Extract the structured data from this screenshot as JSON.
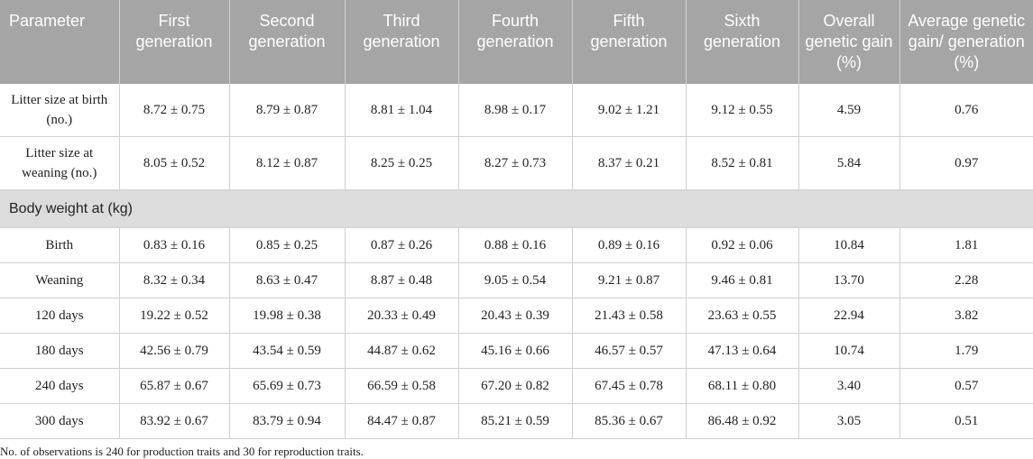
{
  "table": {
    "header": [
      "Parameter",
      "First generation",
      "Second generation",
      "Third generation",
      "Fourth generation",
      "Fifth generation",
      "Sixth generation",
      "Overall genetic gain (%)",
      "Average genetic gain/ generation (%)"
    ],
    "groups": [
      {
        "rows": [
          [
            "Litter size at birth (no.)",
            "8.72 ± 0.75",
            "8.79 ± 0.87",
            "8.81 ± 1.04",
            "8.98 ± 0.17",
            "9.02 ± 1.21",
            "9.12 ± 0.55",
            "4.59",
            "0.76"
          ],
          [
            "Litter size at weaning (no.)",
            "8.05 ± 0.52",
            "8.12 ± 0.87",
            "8.25 ± 0.25",
            "8.27 ± 0.73",
            "8.37 ± 0.21",
            "8.52 ± 0.81",
            "5.84",
            "0.97"
          ]
        ]
      },
      {
        "label": "Body weight at (kg)",
        "rows": [
          [
            "Birth",
            "0.83 ± 0.16",
            "0.85 ± 0.25",
            "0.87 ± 0.26",
            "0.88 ± 0.16",
            "0.89 ± 0.16",
            "0.92 ± 0.06",
            "10.84",
            "1.81"
          ],
          [
            "Weaning",
            "8.32 ± 0.34",
            "8.63 ± 0.47",
            "8.87 ± 0.48",
            "9.05 ± 0.54",
            "9.21 ± 0.87",
            "9.46 ± 0.81",
            "13.70",
            "2.28"
          ],
          [
            "120 days",
            "19.22 ± 0.52",
            "19.98 ± 0.38",
            "20.33 ± 0.49",
            "20.43 ± 0.39",
            "21.43 ± 0.58",
            "23.63 ± 0.55",
            "22.94",
            "3.82"
          ],
          [
            "180 days",
            "42.56 ± 0.79",
            "43.54 ± 0.59",
            "44.87 ± 0.62",
            "45.16 ± 0.66",
            "46.57 ± 0.57",
            "47.13 ± 0.64",
            "10.74",
            "1.79"
          ],
          [
            "240 days",
            "65.87 ± 0.67",
            "65.69 ± 0.73",
            "66.59 ± 0.58",
            "67.20 ± 0.82",
            "67.45 ± 0.78",
            "68.11 ± 0.80",
            "3.40",
            "0.57"
          ],
          [
            "300 days",
            "83.92 ± 0.67",
            "83.79 ± 0.94",
            "84.47 ± 0.87",
            "85.21 ± 0.59",
            "85.36 ± 0.67",
            "86.48 ± 0.92",
            "3.05",
            "0.51"
          ]
        ]
      }
    ],
    "footnote": "No. of observations is 240 for production traits and 30 for reproduction traits."
  }
}
